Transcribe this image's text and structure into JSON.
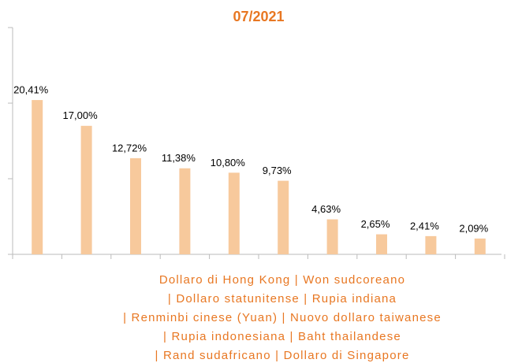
{
  "chart_data": {
    "type": "bar",
    "title": "07/2021",
    "categories": [
      null,
      null,
      null,
      null,
      null,
      null,
      null,
      null,
      null,
      null
    ],
    "values": [
      20.41,
      17.0,
      12.72,
      11.38,
      10.8,
      9.73,
      4.63,
      2.65,
      2.41,
      2.09
    ],
    "value_labels": [
      "20,41%",
      "17,00%",
      "12,72%",
      "11,38%",
      "10,80%",
      "9,73%",
      "4,63%",
      "2,65%",
      "2,41%",
      "2,09%"
    ],
    "color": "#f7c99c",
    "ylim": [
      0,
      30
    ],
    "yticks": [
      0,
      10,
      20,
      30
    ],
    "grid": false,
    "xlabel": [
      "Dollaro di Hong Kong | Won sudcoreano",
      "| Dollaro statunitense | Rupia indiana",
      "| Renminbi cinese (Yuan) | Nuovo dollaro taiwanese",
      "| Rupia indonesiana | Baht thailandese",
      "| Rand sudafricano | Dollaro di Singapore"
    ]
  }
}
